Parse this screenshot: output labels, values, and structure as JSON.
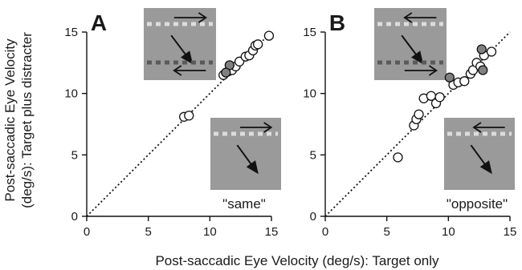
{
  "figure": {
    "x_axis_label": "Post-saccadic Eye Velocity (deg/s): Target only",
    "y_axis_label_line1": "Post-saccadic Eye Velocity",
    "y_axis_label_line2": "(deg/s): Target plus distracter"
  },
  "chart_data": [
    {
      "type": "scatter",
      "panel": "A",
      "condition": "\"same\"",
      "xlim": [
        0,
        15
      ],
      "ylim": [
        0,
        15
      ],
      "xticks": [
        "0",
        "5",
        "10",
        "15"
      ],
      "yticks": [
        "0",
        "5",
        "10",
        "15"
      ],
      "unity_line": true,
      "series": [
        {
          "marker": "open-circle",
          "points": [
            [
              7.9,
              8.1
            ],
            [
              8.3,
              8.2
            ],
            [
              11.1,
              11.5
            ],
            [
              11.5,
              11.8
            ],
            [
              11.8,
              11.9
            ],
            [
              12.1,
              12.2
            ],
            [
              12.4,
              12.6
            ],
            [
              12.9,
              13.0
            ],
            [
              13.2,
              13.1
            ],
            [
              13.5,
              13.5
            ],
            [
              13.7,
              13.9
            ],
            [
              13.9,
              14.0
            ],
            [
              14.8,
              14.7
            ]
          ]
        },
        {
          "marker": "filled-circle",
          "color": "#808080",
          "points": [
            [
              11.6,
              12.3
            ],
            [
              11.3,
              11.7
            ]
          ]
        }
      ]
    },
    {
      "type": "scatter",
      "panel": "B",
      "condition": "\"opposite\"",
      "xlim": [
        0,
        15
      ],
      "ylim": [
        0,
        15
      ],
      "xticks": [
        "0",
        "5",
        "10",
        "15"
      ],
      "yticks": [
        "0",
        "5",
        "10",
        "15"
      ],
      "unity_line": true,
      "series": [
        {
          "marker": "open-circle",
          "points": [
            [
              5.9,
              4.8
            ],
            [
              7.2,
              7.4
            ],
            [
              7.4,
              7.9
            ],
            [
              7.6,
              8.3
            ],
            [
              8.0,
              9.6
            ],
            [
              8.6,
              9.8
            ],
            [
              9.0,
              9.2
            ],
            [
              9.3,
              9.7
            ],
            [
              10.4,
              10.7
            ],
            [
              10.8,
              10.9
            ],
            [
              11.3,
              11.0
            ],
            [
              11.8,
              11.6
            ],
            [
              12.0,
              11.9
            ],
            [
              12.3,
              12.5
            ],
            [
              12.6,
              12.2
            ],
            [
              12.9,
              13.1
            ],
            [
              13.5,
              13.4
            ]
          ]
        },
        {
          "marker": "filled-circle",
          "color": "#808080",
          "points": [
            [
              10.1,
              11.3
            ],
            [
              12.7,
              13.6
            ],
            [
              12.8,
              11.9
            ]
          ]
        }
      ]
    }
  ]
}
